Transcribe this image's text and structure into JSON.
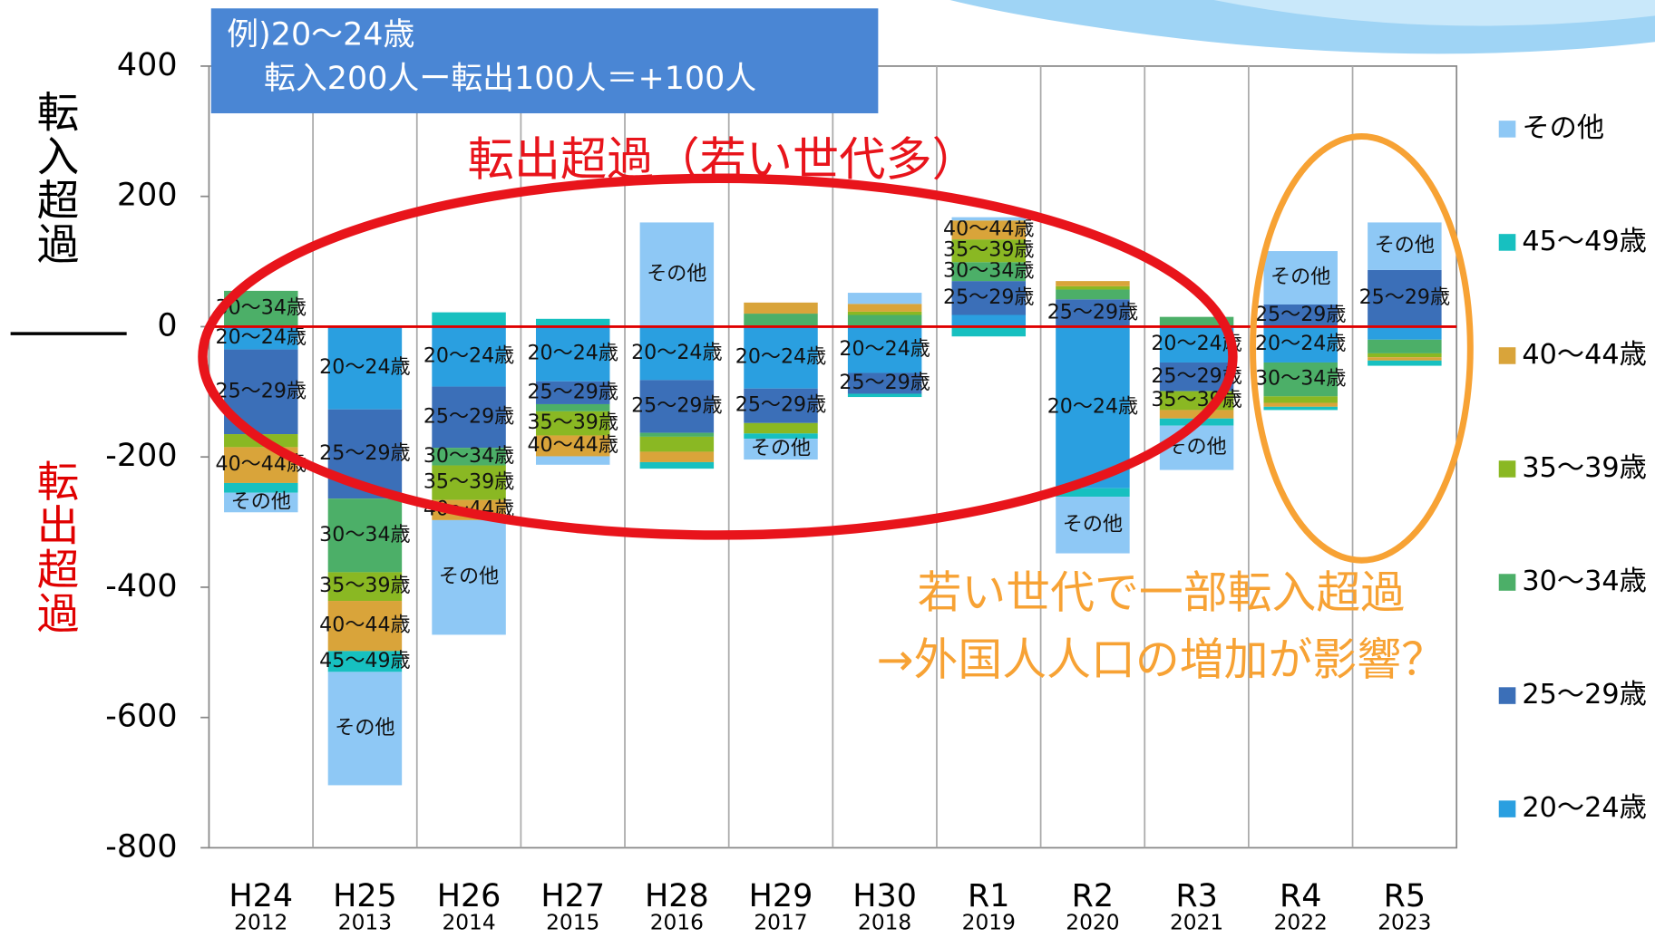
{
  "chart_data": {
    "type": "bar",
    "stacked": true,
    "y_title_positive": "転入超過",
    "y_title_negative": "転出超過",
    "example_heading": "例)20～24歳",
    "example_formula": "転入200人ー転出100人＝+100人",
    "annotation_red": "転出超過（若い世代多）",
    "annotation_orange_1": "若い世代で一部転入超過",
    "annotation_orange_2": "→外国人人口の増加が影響？",
    "categories": [
      "H24",
      "H25",
      "H26",
      "H27",
      "H28",
      "H29",
      "H30",
      "R1",
      "R2",
      "R3",
      "R4",
      "R5"
    ],
    "category_years": [
      "2012",
      "2013",
      "2014",
      "2015",
      "2016",
      "2017",
      "2018",
      "2019",
      "2020",
      "2021",
      "2022",
      "2023"
    ],
    "series": [
      {
        "name": "20～24歳",
        "color": "#2a9fe0",
        "values": [
          -35,
          -127,
          -92,
          -84,
          -82,
          -95,
          -71,
          18,
          -248,
          -55,
          -55,
          -20
        ]
      },
      {
        "name": "25～29歳",
        "color": "#3b6fb8",
        "values": [
          -130,
          -137,
          -94,
          -35,
          -81,
          -53,
          -32,
          52,
          42,
          -44,
          34,
          87
        ]
      },
      {
        "name": "30～34歳",
        "color": "#4caf68",
        "values": [
          55,
          -113,
          -27,
          -11,
          -6,
          20,
          18,
          29,
          15,
          15,
          -52,
          -21
        ]
      },
      {
        "name": "35～39歳",
        "color": "#8ab823",
        "values": [
          -20,
          -44,
          -53,
          -37,
          -23,
          -16,
          5,
          35,
          5,
          -29,
          -10,
          -6
        ]
      },
      {
        "name": "40～44歳",
        "color": "#d9a43a",
        "values": [
          -55,
          -77,
          -31,
          -32,
          -16,
          17,
          12,
          29,
          8,
          -13,
          -6,
          -5
        ]
      },
      {
        "name": "45～49歳",
        "color": "#17c0c0",
        "values": [
          -15,
          -32,
          22,
          12,
          -10,
          -8,
          -5,
          -15,
          -13,
          -11,
          -5,
          -8
        ]
      },
      {
        "name": "その他",
        "color": "#8ec8f5",
        "values": [
          -30,
          -174,
          -176,
          -13,
          160,
          -32,
          17,
          5,
          -87,
          -68,
          82,
          73
        ]
      }
    ],
    "ylim": [
      -800,
      400
    ],
    "yticks": [
      -800,
      -600,
      -400,
      -200,
      0,
      200,
      400
    ],
    "zero_line_color": "#e00000",
    "legend": "right"
  }
}
